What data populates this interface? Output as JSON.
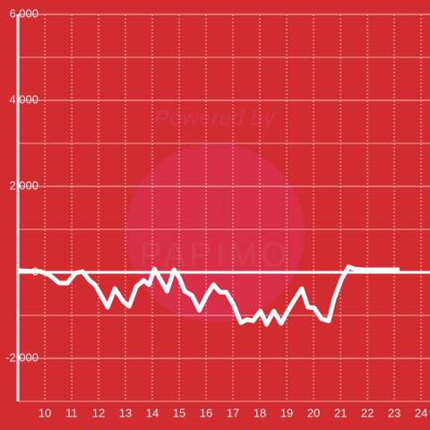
{
  "chart_data": {
    "type": "line",
    "watermark": {
      "top": "Powered by",
      "brand": "PAPIMO"
    },
    "x": [
      9.0,
      9.83,
      10.17,
      10.54,
      10.84,
      11.14,
      11.4,
      11.67,
      11.87,
      12.1,
      12.34,
      12.61,
      12.91,
      13.14,
      13.41,
      13.68,
      13.88,
      14.08,
      14.31,
      14.55,
      14.81,
      15.01,
      15.21,
      15.48,
      15.75,
      16.02,
      16.28,
      16.52,
      16.75,
      17.02,
      17.29,
      17.52,
      17.75,
      18.02,
      18.25,
      18.52,
      18.79,
      19.02,
      19.26,
      19.56,
      19.79,
      20.03,
      20.29,
      20.56,
      20.76,
      21.03,
      21.3,
      21.53,
      21.8,
      23.2
    ],
    "series": [
      {
        "color": "#ffffff",
        "values": [
          40,
          20,
          -60,
          -250,
          -250,
          -20,
          20,
          -190,
          -290,
          -540,
          -810,
          -380,
          -670,
          -790,
          -330,
          -190,
          -290,
          80,
          -170,
          -440,
          60,
          -130,
          -440,
          -540,
          -880,
          -540,
          -290,
          -460,
          -460,
          -750,
          -1170,
          -1100,
          -1130,
          -900,
          -1210,
          -900,
          -1190,
          -920,
          -670,
          -380,
          -810,
          -830,
          -1080,
          -1130,
          -630,
          -170,
          130,
          80,
          60,
          60
        ]
      }
    ],
    "xlim": [
      9,
      24.33
    ],
    "xticks": [
      10,
      11,
      12,
      13,
      14,
      15,
      16,
      17,
      18,
      19,
      20,
      21,
      22,
      23,
      24
    ],
    "ylim": [
      -3000,
      6000
    ],
    "yticks": [
      {
        "value": -2000,
        "label": "-2,000"
      },
      0,
      {
        "value": 2000,
        "label": "2,000"
      },
      {
        "value": 4000,
        "label": "4,000"
      },
      {
        "value": 6000,
        "label": "6,000"
      }
    ],
    "yminor": [
      -3000,
      -1000,
      1000,
      3000,
      5000
    ],
    "grid": true
  }
}
